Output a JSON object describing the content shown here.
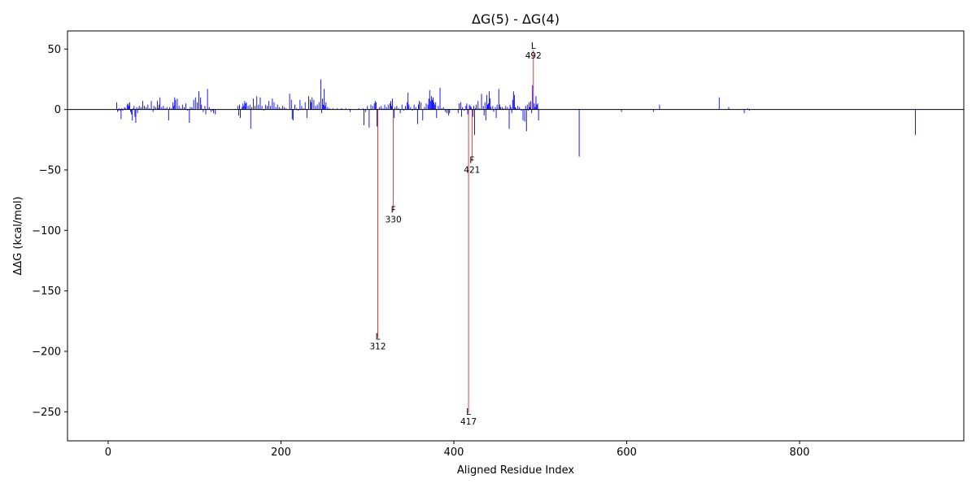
{
  "chart_data": {
    "type": "bar",
    "title": "ΔG(5) - ΔG(4)",
    "xlabel": "Aligned Residue Index",
    "ylabel": "ΔΔG (kcal/mol)",
    "xlim": [
      -47,
      990
    ],
    "ylim": [
      -274,
      65
    ],
    "xticks": [
      0,
      200,
      400,
      600,
      800
    ],
    "yticks": [
      50,
      0,
      -50,
      -100,
      -150,
      -200,
      -250
    ],
    "grid": false,
    "legend": "none",
    "colors": {
      "bar": "#0000ff",
      "highlight": "#d62728",
      "zero_line": "#000000"
    },
    "series": [
      {
        "points": [
          [
            10,
            6
          ],
          [
            11,
            -2
          ],
          [
            12,
            -1
          ],
          [
            13,
            1
          ],
          [
            14,
            -1
          ],
          [
            15,
            -8
          ],
          [
            16,
            1
          ],
          [
            17,
            -1
          ],
          [
            19,
            2
          ],
          [
            20,
            1
          ],
          [
            22,
            4
          ],
          [
            23,
            5
          ],
          [
            24,
            3
          ],
          [
            25,
            6
          ],
          [
            26,
            -2
          ],
          [
            27,
            -4
          ],
          [
            28,
            -9
          ],
          [
            29,
            1
          ],
          [
            30,
            3
          ],
          [
            31,
            -6
          ],
          [
            32,
            -11
          ],
          [
            33,
            2
          ],
          [
            34,
            -3
          ],
          [
            35,
            1
          ],
          [
            36,
            3
          ],
          [
            38,
            2
          ],
          [
            40,
            7
          ],
          [
            42,
            3
          ],
          [
            44,
            2
          ],
          [
            46,
            4
          ],
          [
            48,
            1
          ],
          [
            50,
            7
          ],
          [
            52,
            -2
          ],
          [
            53,
            3
          ],
          [
            55,
            2
          ],
          [
            57,
            7
          ],
          [
            58,
            1
          ],
          [
            59,
            4
          ],
          [
            60,
            10
          ],
          [
            62,
            2
          ],
          [
            64,
            3
          ],
          [
            66,
            1
          ],
          [
            68,
            2
          ],
          [
            70,
            -9
          ],
          [
            71,
            2
          ],
          [
            73,
            1
          ],
          [
            75,
            6
          ],
          [
            76,
            3
          ],
          [
            77,
            10
          ],
          [
            78,
            8
          ],
          [
            80,
            9
          ],
          [
            82,
            3
          ],
          [
            84,
            1
          ],
          [
            86,
            4
          ],
          [
            88,
            2
          ],
          [
            90,
            5
          ],
          [
            92,
            -1
          ],
          [
            94,
            -11
          ],
          [
            95,
            2
          ],
          [
            97,
            2
          ],
          [
            99,
            8
          ],
          [
            101,
            10
          ],
          [
            103,
            6
          ],
          [
            105,
            15
          ],
          [
            107,
            10
          ],
          [
            108,
            4
          ],
          [
            110,
            -2
          ],
          [
            112,
            3
          ],
          [
            113,
            -4
          ],
          [
            115,
            17
          ],
          [
            117,
            2
          ],
          [
            119,
            -2
          ],
          [
            121,
            -1
          ],
          [
            122,
            -3
          ],
          [
            124,
            -4
          ],
          [
            150,
            3
          ],
          [
            151,
            -5
          ],
          [
            152,
            4
          ],
          [
            153,
            -7
          ],
          [
            155,
            2
          ],
          [
            156,
            5
          ],
          [
            157,
            3
          ],
          [
            158,
            7
          ],
          [
            159,
            5
          ],
          [
            160,
            6
          ],
          [
            162,
            3
          ],
          [
            164,
            4
          ],
          [
            165,
            -16
          ],
          [
            166,
            2
          ],
          [
            168,
            9
          ],
          [
            170,
            3
          ],
          [
            172,
            11
          ],
          [
            174,
            4
          ],
          [
            176,
            10
          ],
          [
            178,
            3
          ],
          [
            180,
            -1
          ],
          [
            182,
            4
          ],
          [
            184,
            3
          ],
          [
            186,
            7
          ],
          [
            188,
            3
          ],
          [
            190,
            9
          ],
          [
            192,
            6
          ],
          [
            194,
            2
          ],
          [
            196,
            4
          ],
          [
            198,
            2
          ],
          [
            200,
            1
          ],
          [
            202,
            3
          ],
          [
            204,
            2
          ],
          [
            206,
            1
          ],
          [
            210,
            13
          ],
          [
            212,
            8
          ],
          [
            213,
            -8
          ],
          [
            214,
            -9
          ],
          [
            216,
            4
          ],
          [
            218,
            1
          ],
          [
            220,
            -1
          ],
          [
            222,
            8
          ],
          [
            224,
            3
          ],
          [
            226,
            1
          ],
          [
            228,
            6
          ],
          [
            230,
            -7
          ],
          [
            232,
            11
          ],
          [
            234,
            8
          ],
          [
            235,
            6
          ],
          [
            236,
            10
          ],
          [
            238,
            8
          ],
          [
            240,
            3
          ],
          [
            242,
            4
          ],
          [
            244,
            6
          ],
          [
            246,
            25
          ],
          [
            247,
            -3
          ],
          [
            248,
            9
          ],
          [
            249,
            4
          ],
          [
            250,
            17
          ],
          [
            251,
            3
          ],
          [
            252,
            6
          ],
          [
            254,
            2
          ],
          [
            256,
            1
          ],
          [
            260,
            1
          ],
          [
            265,
            1
          ],
          [
            270,
            1
          ],
          [
            275,
            1
          ],
          [
            280,
            -2
          ],
          [
            290,
            1
          ],
          [
            295,
            1
          ],
          [
            296,
            -13
          ],
          [
            298,
            -2
          ],
          [
            300,
            3
          ],
          [
            302,
            -15
          ],
          [
            304,
            4
          ],
          [
            306,
            3
          ],
          [
            308,
            5
          ],
          [
            309,
            7
          ],
          [
            310,
            6
          ],
          [
            311,
            -14
          ],
          [
            312,
            -189
          ],
          [
            314,
            2
          ],
          [
            316,
            3
          ],
          [
            318,
            1
          ],
          [
            320,
            4
          ],
          [
            322,
            2
          ],
          [
            324,
            4
          ],
          [
            326,
            5
          ],
          [
            327,
            7
          ],
          [
            328,
            3
          ],
          [
            329,
            9
          ],
          [
            330,
            -84
          ],
          [
            331,
            -7
          ],
          [
            332,
            2
          ],
          [
            334,
            3
          ],
          [
            336,
            1
          ],
          [
            338,
            -3
          ],
          [
            340,
            4
          ],
          [
            342,
            -1
          ],
          [
            344,
            3
          ],
          [
            346,
            6
          ],
          [
            347,
            14
          ],
          [
            348,
            4
          ],
          [
            350,
            2
          ],
          [
            352,
            -1
          ],
          [
            354,
            4
          ],
          [
            356,
            2
          ],
          [
            358,
            -12
          ],
          [
            359,
            4
          ],
          [
            360,
            7
          ],
          [
            362,
            6
          ],
          [
            364,
            -9
          ],
          [
            366,
            2
          ],
          [
            368,
            5
          ],
          [
            370,
            4
          ],
          [
            371,
            9
          ],
          [
            372,
            16
          ],
          [
            373,
            7
          ],
          [
            374,
            11
          ],
          [
            375,
            8
          ],
          [
            376,
            10
          ],
          [
            377,
            6
          ],
          [
            378,
            4
          ],
          [
            379,
            6
          ],
          [
            380,
            -7
          ],
          [
            382,
            3
          ],
          [
            384,
            18
          ],
          [
            386,
            1
          ],
          [
            388,
            2
          ],
          [
            390,
            -2
          ],
          [
            392,
            -3
          ],
          [
            394,
            -5
          ],
          [
            395,
            -3
          ],
          [
            405,
            -3
          ],
          [
            406,
            5
          ],
          [
            408,
            6
          ],
          [
            409,
            -6
          ],
          [
            410,
            2
          ],
          [
            412,
            -1
          ],
          [
            414,
            3
          ],
          [
            415,
            5
          ],
          [
            416,
            -4
          ],
          [
            417,
            -251
          ],
          [
            418,
            4
          ],
          [
            419,
            3
          ],
          [
            420,
            2
          ],
          [
            421,
            -43
          ],
          [
            422,
            -6
          ],
          [
            423,
            3
          ],
          [
            424,
            -21
          ],
          [
            425,
            1
          ],
          [
            426,
            4
          ],
          [
            428,
            7
          ],
          [
            430,
            1
          ],
          [
            432,
            13
          ],
          [
            434,
            3
          ],
          [
            435,
            -5
          ],
          [
            436,
            6
          ],
          [
            437,
            -9
          ],
          [
            438,
            12
          ],
          [
            439,
            4
          ],
          [
            440,
            5
          ],
          [
            441,
            15
          ],
          [
            442,
            9
          ],
          [
            443,
            2
          ],
          [
            445,
            3
          ],
          [
            446,
            -2
          ],
          [
            448,
            2
          ],
          [
            449,
            -7
          ],
          [
            450,
            4
          ],
          [
            452,
            17
          ],
          [
            453,
            4
          ],
          [
            454,
            2
          ],
          [
            456,
            2
          ],
          [
            458,
            1
          ],
          [
            460,
            3
          ],
          [
            462,
            2
          ],
          [
            464,
            -16
          ],
          [
            465,
            4
          ],
          [
            466,
            2
          ],
          [
            467,
            -3
          ],
          [
            468,
            8
          ],
          [
            469,
            15
          ],
          [
            470,
            12
          ],
          [
            471,
            2
          ],
          [
            472,
            1
          ],
          [
            474,
            3
          ],
          [
            476,
            2
          ],
          [
            478,
            -1
          ],
          [
            480,
            -9
          ],
          [
            482,
            -10
          ],
          [
            483,
            3
          ],
          [
            484,
            -18
          ],
          [
            485,
            4
          ],
          [
            486,
            -1
          ],
          [
            487,
            6
          ],
          [
            488,
            2
          ],
          [
            489,
            7
          ],
          [
            490,
            -3
          ],
          [
            491,
            20
          ],
          [
            492,
            49
          ],
          [
            493,
            5
          ],
          [
            494,
            2
          ],
          [
            495,
            11
          ],
          [
            496,
            4
          ],
          [
            497,
            5
          ],
          [
            498,
            -9
          ],
          [
            545,
            -39
          ],
          [
            594,
            -2
          ],
          [
            631,
            -2
          ],
          [
            638,
            4
          ],
          [
            707,
            10
          ],
          [
            718,
            2
          ],
          [
            736,
            -3
          ],
          [
            740,
            1
          ],
          [
            742,
            -1
          ],
          [
            934,
            -21
          ]
        ]
      }
    ],
    "annotations": [
      {
        "x": 312,
        "y": -189,
        "residue": "L",
        "index": "312"
      },
      {
        "x": 330,
        "y": -84,
        "residue": "F",
        "index": "330"
      },
      {
        "x": 417,
        "y": -251,
        "residue": "L",
        "index": "417"
      },
      {
        "x": 421,
        "y": -43,
        "residue": "F",
        "index": "421"
      },
      {
        "x": 492,
        "y": 49,
        "residue": "L",
        "index": "492"
      }
    ]
  }
}
